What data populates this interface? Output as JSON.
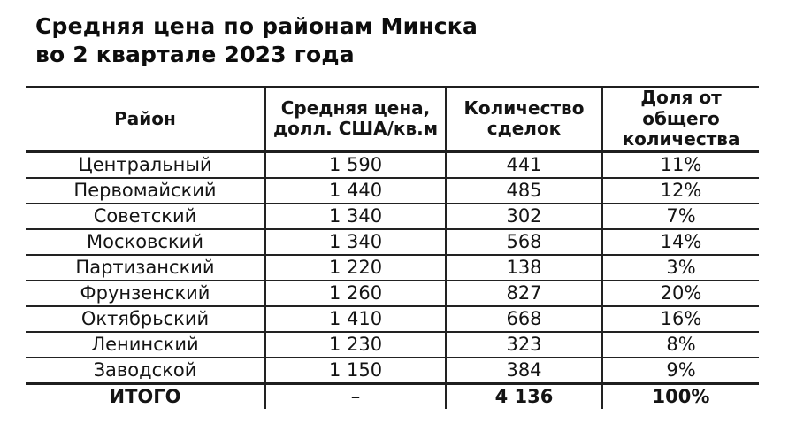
{
  "title": {
    "text": "Средняя цена по районам Минска\nво 2 квартале 2023 года"
  },
  "table": {
    "columns": [
      {
        "label": "Район"
      },
      {
        "label": "Средняя цена,\nдолл. США/кв.м"
      },
      {
        "label": "Количество\nсделок"
      },
      {
        "label": "Доля от\nобщего\nколичества"
      }
    ],
    "rows": [
      {
        "district": "Центральный",
        "avg_price": "1 590",
        "deals": "441",
        "share": "11%"
      },
      {
        "district": "Первомайский",
        "avg_price": "1 440",
        "deals": "485",
        "share": "12%"
      },
      {
        "district": "Советский",
        "avg_price": "1 340",
        "deals": "302",
        "share": "7%"
      },
      {
        "district": "Московский",
        "avg_price": "1 340",
        "deals": "568",
        "share": "14%"
      },
      {
        "district": "Партизанский",
        "avg_price": "1 220",
        "deals": "138",
        "share": "3%"
      },
      {
        "district": "Фрунзенский",
        "avg_price": "1 260",
        "deals": "827",
        "share": "20%"
      },
      {
        "district": "Октябрьский",
        "avg_price": "1 410",
        "deals": "668",
        "share": "16%"
      },
      {
        "district": "Ленинский",
        "avg_price": "1 230",
        "deals": "323",
        "share": "8%"
      },
      {
        "district": "Заводской",
        "avg_price": "1 150",
        "deals": "384",
        "share": "9%"
      }
    ],
    "total": {
      "district": "ИТОГО",
      "avg_price": "–",
      "deals": "4 136",
      "share": "100%"
    }
  },
  "colors": {
    "text": "#121212",
    "line": "#222222",
    "background": "#ffffff"
  }
}
